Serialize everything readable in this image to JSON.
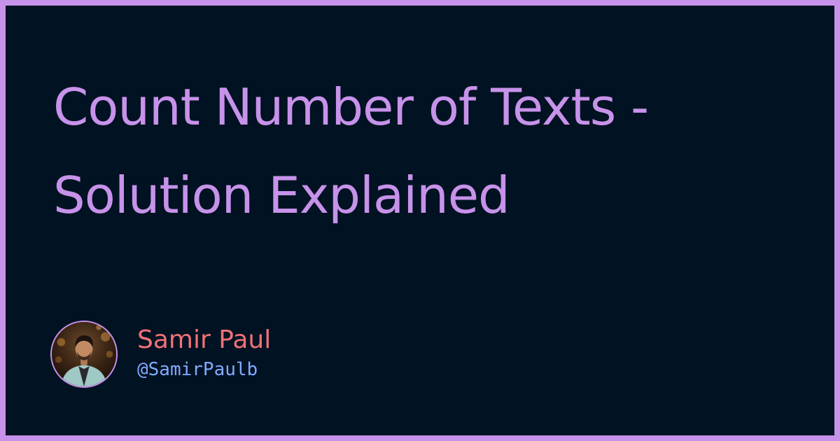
{
  "card": {
    "title": "Count Number of Texts - Solution Explained"
  },
  "author": {
    "name": "Samir Paul",
    "handle": "@SamirPaulb",
    "avatar_icon": "author-photo"
  },
  "colors": {
    "background": "#011222",
    "border": "#c792ea",
    "title": "#c792ea",
    "name": "#f07178",
    "handle": "#82aaff"
  }
}
